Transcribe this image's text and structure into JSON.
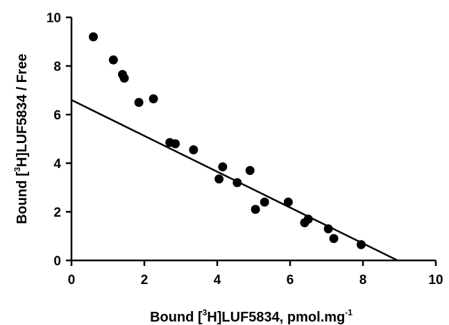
{
  "chart_data": {
    "type": "scatter",
    "title": "",
    "xlabel": {
      "prefix": "Bound [",
      "sup": "3",
      "suffix": "H]LUF5834, pmol.mg",
      "unit_sup": "-1"
    },
    "ylabel": {
      "prefix": "Bound [",
      "sup": "3",
      "suffix": "H]LUF5834 / Free"
    },
    "xlim": [
      0,
      10
    ],
    "ylim": [
      0,
      10
    ],
    "xticks": [
      "0",
      "2",
      "4",
      "6",
      "8",
      "10"
    ],
    "yticks": [
      "0",
      "2",
      "4",
      "6",
      "8",
      "10"
    ],
    "grid": false,
    "series": [
      {
        "points": [
          {
            "x": 0.6,
            "y": 9.2
          },
          {
            "x": 1.15,
            "y": 8.25
          },
          {
            "x": 1.4,
            "y": 7.65
          },
          {
            "x": 1.45,
            "y": 7.5
          },
          {
            "x": 1.85,
            "y": 6.5
          },
          {
            "x": 2.25,
            "y": 6.65
          },
          {
            "x": 2.7,
            "y": 4.85
          },
          {
            "x": 2.85,
            "y": 4.8
          },
          {
            "x": 3.35,
            "y": 4.55
          },
          {
            "x": 4.05,
            "y": 3.35
          },
          {
            "x": 4.15,
            "y": 3.85
          },
          {
            "x": 4.55,
            "y": 3.2
          },
          {
            "x": 4.9,
            "y": 3.7
          },
          {
            "x": 5.05,
            "y": 2.1
          },
          {
            "x": 5.3,
            "y": 2.4
          },
          {
            "x": 5.95,
            "y": 2.4
          },
          {
            "x": 6.4,
            "y": 1.55
          },
          {
            "x": 6.5,
            "y": 1.7
          },
          {
            "x": 7.05,
            "y": 1.3
          },
          {
            "x": 7.2,
            "y": 0.9
          },
          {
            "x": 7.95,
            "y": 0.65
          }
        ]
      }
    ],
    "fit_line": {
      "x": [
        0,
        8.95
      ],
      "y": [
        6.6,
        0
      ]
    }
  }
}
